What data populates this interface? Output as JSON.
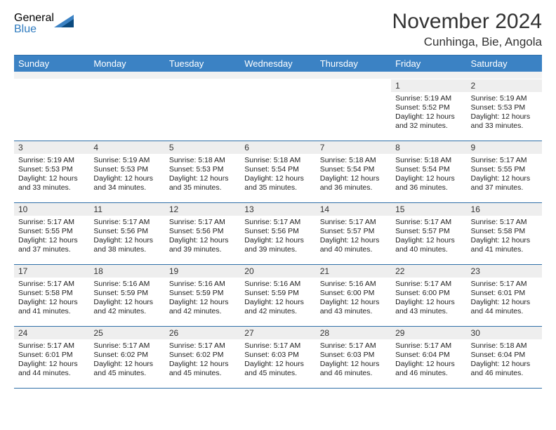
{
  "brand": {
    "word1": "General",
    "word2": "Blue"
  },
  "title": "November 2024",
  "location": "Cunhinga, Bie, Angola",
  "colors": {
    "header_bg": "#3b82c4",
    "header_border": "#2f6fa8",
    "daynum_bg": "#eeeeee",
    "brand_gray": "#5a5a5a",
    "brand_blue": "#2f7bbf",
    "triangle_dark": "#0b4a7f",
    "triangle_light": "#3b82c4"
  },
  "dow": [
    "Sunday",
    "Monday",
    "Tuesday",
    "Wednesday",
    "Thursday",
    "Friday",
    "Saturday"
  ],
  "weeks": [
    [
      null,
      null,
      null,
      null,
      null,
      {
        "n": "1",
        "sr": "5:19 AM",
        "ss": "5:52 PM",
        "dl": "12 hours and 32 minutes."
      },
      {
        "n": "2",
        "sr": "5:19 AM",
        "ss": "5:53 PM",
        "dl": "12 hours and 33 minutes."
      }
    ],
    [
      {
        "n": "3",
        "sr": "5:19 AM",
        "ss": "5:53 PM",
        "dl": "12 hours and 33 minutes."
      },
      {
        "n": "4",
        "sr": "5:19 AM",
        "ss": "5:53 PM",
        "dl": "12 hours and 34 minutes."
      },
      {
        "n": "5",
        "sr": "5:18 AM",
        "ss": "5:53 PM",
        "dl": "12 hours and 35 minutes."
      },
      {
        "n": "6",
        "sr": "5:18 AM",
        "ss": "5:54 PM",
        "dl": "12 hours and 35 minutes."
      },
      {
        "n": "7",
        "sr": "5:18 AM",
        "ss": "5:54 PM",
        "dl": "12 hours and 36 minutes."
      },
      {
        "n": "8",
        "sr": "5:18 AM",
        "ss": "5:54 PM",
        "dl": "12 hours and 36 minutes."
      },
      {
        "n": "9",
        "sr": "5:17 AM",
        "ss": "5:55 PM",
        "dl": "12 hours and 37 minutes."
      }
    ],
    [
      {
        "n": "10",
        "sr": "5:17 AM",
        "ss": "5:55 PM",
        "dl": "12 hours and 37 minutes."
      },
      {
        "n": "11",
        "sr": "5:17 AM",
        "ss": "5:56 PM",
        "dl": "12 hours and 38 minutes."
      },
      {
        "n": "12",
        "sr": "5:17 AM",
        "ss": "5:56 PM",
        "dl": "12 hours and 39 minutes."
      },
      {
        "n": "13",
        "sr": "5:17 AM",
        "ss": "5:56 PM",
        "dl": "12 hours and 39 minutes."
      },
      {
        "n": "14",
        "sr": "5:17 AM",
        "ss": "5:57 PM",
        "dl": "12 hours and 40 minutes."
      },
      {
        "n": "15",
        "sr": "5:17 AM",
        "ss": "5:57 PM",
        "dl": "12 hours and 40 minutes."
      },
      {
        "n": "16",
        "sr": "5:17 AM",
        "ss": "5:58 PM",
        "dl": "12 hours and 41 minutes."
      }
    ],
    [
      {
        "n": "17",
        "sr": "5:17 AM",
        "ss": "5:58 PM",
        "dl": "12 hours and 41 minutes."
      },
      {
        "n": "18",
        "sr": "5:16 AM",
        "ss": "5:59 PM",
        "dl": "12 hours and 42 minutes."
      },
      {
        "n": "19",
        "sr": "5:16 AM",
        "ss": "5:59 PM",
        "dl": "12 hours and 42 minutes."
      },
      {
        "n": "20",
        "sr": "5:16 AM",
        "ss": "5:59 PM",
        "dl": "12 hours and 42 minutes."
      },
      {
        "n": "21",
        "sr": "5:16 AM",
        "ss": "6:00 PM",
        "dl": "12 hours and 43 minutes."
      },
      {
        "n": "22",
        "sr": "5:17 AM",
        "ss": "6:00 PM",
        "dl": "12 hours and 43 minutes."
      },
      {
        "n": "23",
        "sr": "5:17 AM",
        "ss": "6:01 PM",
        "dl": "12 hours and 44 minutes."
      }
    ],
    [
      {
        "n": "24",
        "sr": "5:17 AM",
        "ss": "6:01 PM",
        "dl": "12 hours and 44 minutes."
      },
      {
        "n": "25",
        "sr": "5:17 AM",
        "ss": "6:02 PM",
        "dl": "12 hours and 45 minutes."
      },
      {
        "n": "26",
        "sr": "5:17 AM",
        "ss": "6:02 PM",
        "dl": "12 hours and 45 minutes."
      },
      {
        "n": "27",
        "sr": "5:17 AM",
        "ss": "6:03 PM",
        "dl": "12 hours and 45 minutes."
      },
      {
        "n": "28",
        "sr": "5:17 AM",
        "ss": "6:03 PM",
        "dl": "12 hours and 46 minutes."
      },
      {
        "n": "29",
        "sr": "5:17 AM",
        "ss": "6:04 PM",
        "dl": "12 hours and 46 minutes."
      },
      {
        "n": "30",
        "sr": "5:18 AM",
        "ss": "6:04 PM",
        "dl": "12 hours and 46 minutes."
      }
    ]
  ],
  "labels": {
    "sunrise": "Sunrise: ",
    "sunset": "Sunset: ",
    "daylight": "Daylight: "
  }
}
